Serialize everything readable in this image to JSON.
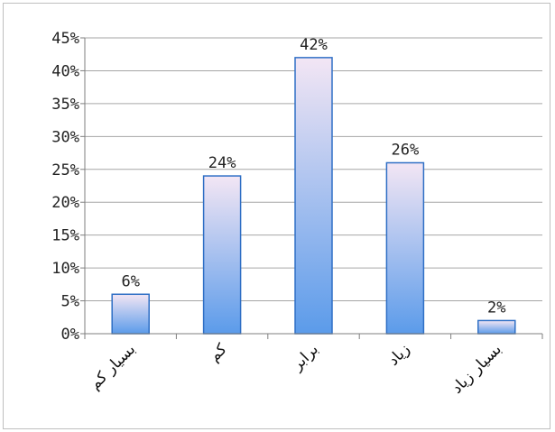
{
  "chart_data": {
    "type": "bar",
    "categories": [
      "بسیار کم",
      "کم",
      "برابر",
      "زیاد",
      "بسیار زیاد"
    ],
    "values": [
      6,
      24,
      42,
      26,
      2
    ],
    "data_labels": [
      "6%",
      "24%",
      "42%",
      "26%",
      "2%"
    ],
    "y_ticks": [
      0,
      5,
      10,
      15,
      20,
      25,
      30,
      35,
      40,
      45
    ],
    "y_tick_labels": [
      "0%",
      "5%",
      "10%",
      "15%",
      "20%",
      "25%",
      "30%",
      "35%",
      "40%",
      "45%"
    ],
    "ylim": [
      0,
      45
    ],
    "grid": true,
    "legend": "none",
    "colors": {
      "bar_top": "#f3e6f4",
      "bar_bottom": "#5b9bea",
      "bar_stroke": "#2f6fc5",
      "grid": "#a6a6a6",
      "axis": "#7f7f7f"
    }
  }
}
